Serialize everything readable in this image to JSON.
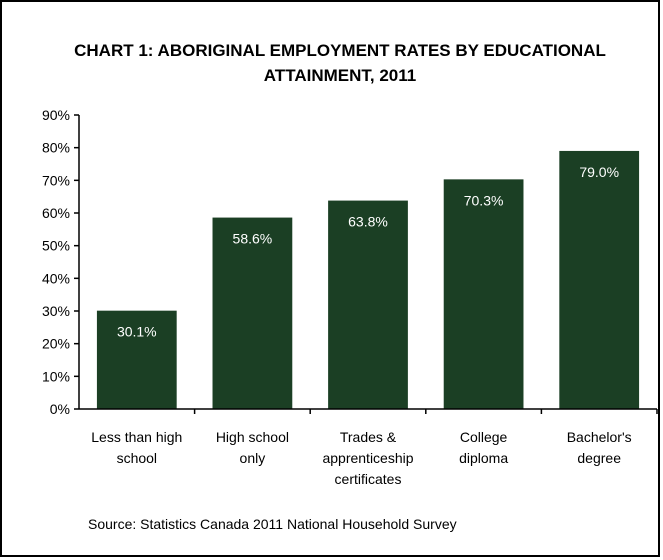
{
  "chart_data": {
    "type": "bar",
    "title": "CHART 1: ABORIGINAL EMPLOYMENT RATES BY EDUCATIONAL ATTAINMENT, 2011",
    "xlabel": "",
    "ylabel": "",
    "categories": [
      [
        "Less than high",
        "school"
      ],
      [
        "High school",
        "only"
      ],
      [
        "Trades &",
        "apprenticeship",
        "certificates"
      ],
      [
        "College",
        "diploma"
      ],
      [
        "Bachelor's",
        "degree"
      ]
    ],
    "values": [
      30.1,
      58.6,
      63.8,
      70.3,
      79.0
    ],
    "data_labels": [
      "30.1%",
      "58.6%",
      "63.8%",
      "70.3%",
      "79.0%"
    ],
    "ylim": [
      0,
      90
    ],
    "yticks": [
      0,
      10,
      20,
      30,
      40,
      50,
      60,
      70,
      80,
      90
    ],
    "ytick_labels": [
      "0%",
      "10%",
      "20%",
      "30%",
      "40%",
      "50%",
      "60%",
      "70%",
      "80%",
      "90%"
    ],
    "grid": false,
    "legend": "none",
    "colors": {
      "bar": "#1b3f24",
      "data_label": "#ffffff",
      "axis": "#000000"
    }
  },
  "source": "Source: Statistics Canada 2011 National Household Survey"
}
